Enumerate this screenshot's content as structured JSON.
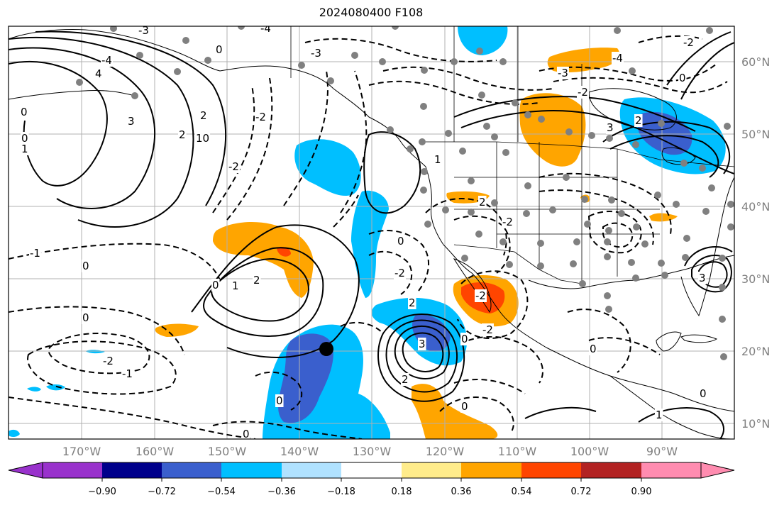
{
  "title": "2024080400 F108",
  "map": {
    "lat_labels": [
      "60°N",
      "50°N",
      "40°N",
      "30°N",
      "20°N",
      "10°N"
    ],
    "lon_labels": [
      "170°W",
      "160°W",
      "150°W",
      "140°W",
      "130°W",
      "120°W",
      "110°W",
      "100°W",
      "90°W"
    ],
    "gridlines": true,
    "contour_labels": [
      "0",
      "1",
      "2",
      "3",
      "4",
      "-1",
      "-2",
      "-3",
      "-4",
      "10"
    ],
    "colors": {
      "coast": "#000000",
      "grid": "#b0b0b0",
      "label": "#808080",
      "station": "#808080",
      "center_marker": "#000000"
    }
  },
  "colorbar": {
    "tick_labels": [
      "−0.90",
      "−0.72",
      "−0.54",
      "−0.36",
      "−0.18",
      "0.18",
      "0.36",
      "0.54",
      "0.72",
      "0.90"
    ],
    "colors": [
      "#9932cc",
      "#00008b",
      "#3a5fcd",
      "#00bfff",
      "#b0e2ff",
      "#ffffff",
      "#ffec8b",
      "#ffa500",
      "#ff4500",
      "#b22222",
      "#ff8cb0"
    ]
  }
}
